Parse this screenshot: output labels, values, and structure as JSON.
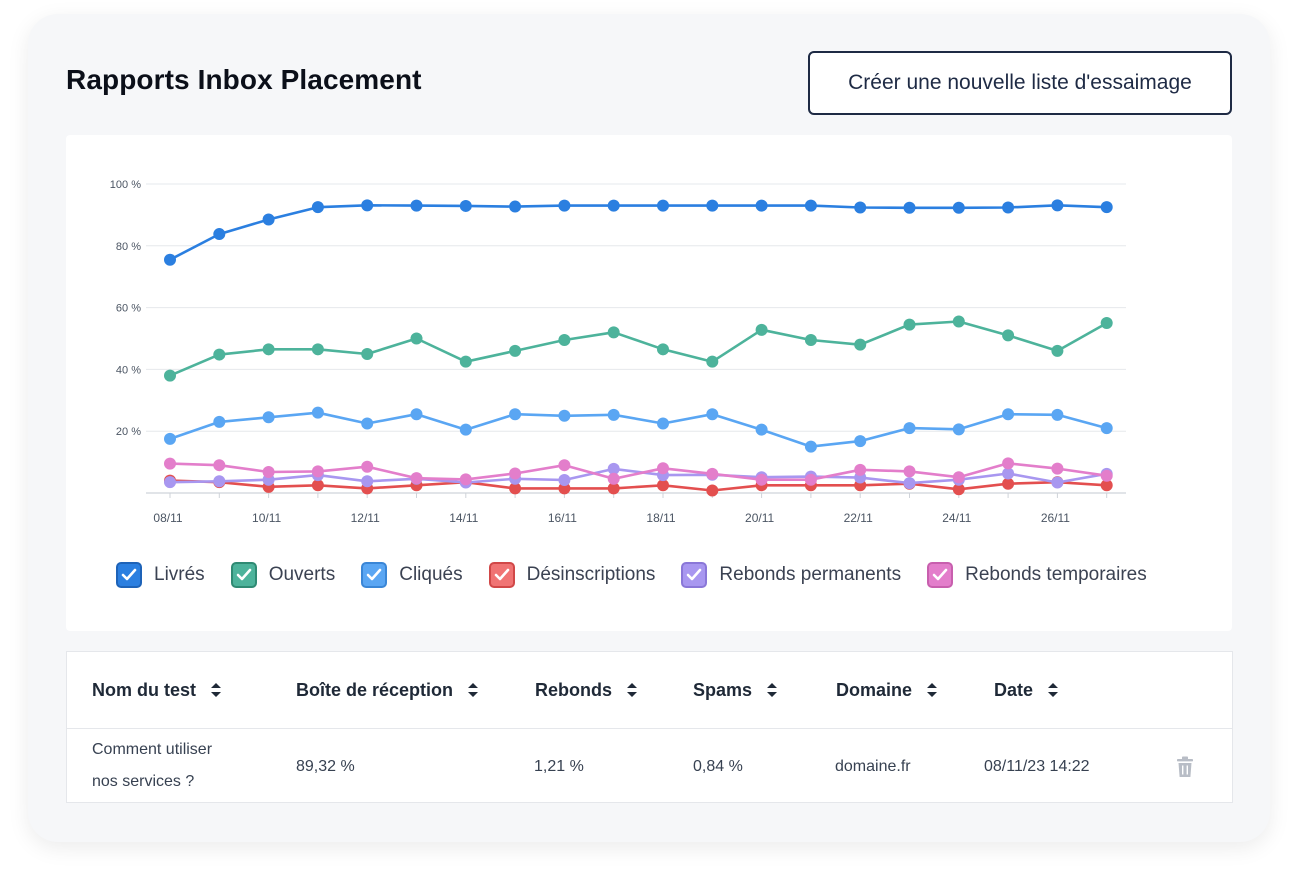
{
  "header": {
    "title": "Rapports Inbox Placement",
    "cta_label": "Créer une nouvelle liste d'essaimage"
  },
  "chart_data": {
    "type": "line",
    "x": [
      "08/11",
      "09/11",
      "10/11",
      "11/11",
      "12/11",
      "13/11",
      "14/11",
      "15/11",
      "16/11",
      "17/11",
      "18/11",
      "19/11",
      "20/11",
      "21/11",
      "22/11",
      "23/11",
      "24/11",
      "25/11",
      "26/11",
      "27/11"
    ],
    "x_tick_labels": [
      "08/11",
      "10/11",
      "12/11",
      "14/11",
      "16/11",
      "18/11",
      "20/11",
      "22/11",
      "24/11",
      "26/11"
    ],
    "y_ticks": [
      "100 %",
      "80 %",
      "60 %",
      "40 %",
      "20 %"
    ],
    "ylim": [
      0,
      100
    ],
    "grid": true,
    "legend_position": "bottom",
    "series": [
      {
        "name": "Livrés",
        "color": "#2b7fe0",
        "values": [
          75.5,
          83.8,
          88.5,
          92.5,
          93.1,
          93.0,
          92.9,
          92.7,
          93.0,
          93.0,
          93.0,
          93.0,
          93.0,
          93.0,
          92.4,
          92.3,
          92.3,
          92.4,
          93.1,
          92.5
        ]
      },
      {
        "name": "Ouverts",
        "color": "#4db39b",
        "values": [
          38.0,
          44.8,
          46.5,
          46.5,
          45.0,
          50.0,
          42.5,
          46.0,
          49.5,
          52.0,
          46.5,
          42.5,
          52.8,
          49.5,
          48.0,
          54.5,
          55.5,
          51.0,
          46.0,
          55.0
        ]
      },
      {
        "name": "Cliqués",
        "color": "#5aa6f3",
        "values": [
          17.5,
          23.0,
          24.5,
          26.0,
          22.5,
          25.5,
          20.5,
          25.5,
          25.0,
          25.3,
          22.5,
          25.5,
          20.5,
          15.0,
          16.8,
          21.0,
          20.6,
          25.5,
          25.3,
          21.0
        ]
      },
      {
        "name": "Désinscriptions",
        "color": "#e34f4f",
        "values": [
          4.0,
          3.5,
          2.0,
          2.5,
          1.5,
          2.5,
          3.5,
          1.5,
          1.5,
          1.5,
          2.5,
          0.8,
          2.5,
          2.5,
          2.5,
          3.0,
          1.2,
          3.0,
          3.5,
          2.5
        ]
      },
      {
        "name": "Rebonds permanents",
        "color": "#a897f0",
        "values": [
          3.5,
          3.8,
          4.3,
          5.8,
          3.8,
          4.6,
          3.4,
          4.6,
          4.2,
          7.8,
          5.8,
          5.9,
          5.1,
          5.3,
          5.0,
          3.2,
          4.3,
          6.3,
          3.4,
          6.2
        ]
      },
      {
        "name": "Rebonds temporaires",
        "color": "#e37ecb",
        "values": [
          9.5,
          9.0,
          6.8,
          7.0,
          8.5,
          4.8,
          4.4,
          6.3,
          9.0,
          4.6,
          8.0,
          6.2,
          4.3,
          4.3,
          7.5,
          7.0,
          5.1,
          9.6,
          7.9,
          5.6
        ]
      }
    ]
  },
  "table": {
    "headers": [
      "Nom du test",
      "Boîte de réception",
      "Rebonds",
      "Spams",
      "Domaine",
      "Date"
    ],
    "rows": [
      {
        "name_line1": "Comment utiliser",
        "name_line2": "nos services ?",
        "inbox": "89,32 %",
        "bounces": "1,21 %",
        "spams": "0,84 %",
        "domain": "domaine.fr",
        "date": "08/11/23 14:22"
      }
    ]
  },
  "icons": {
    "sort": "sort-arrows-icon",
    "delete": "trash-icon",
    "check": "check-icon"
  }
}
